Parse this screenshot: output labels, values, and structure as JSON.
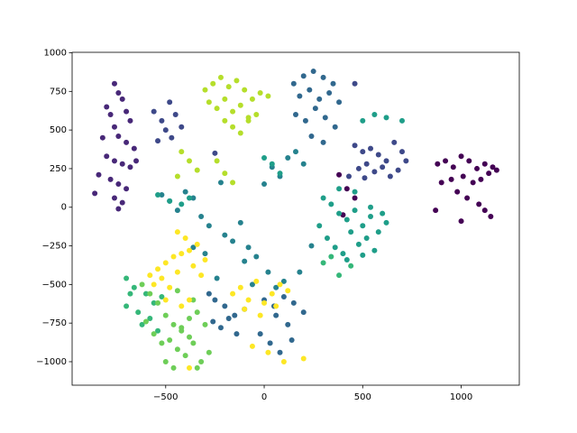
{
  "chart_data": {
    "type": "scatter",
    "xlim": [
      -975,
      1295
    ],
    "ylim": [
      -1152,
      1003
    ],
    "xticks": [
      {
        "value": -500,
        "label": "−500"
      },
      0,
      500,
      1000
    ],
    "yticks": [
      {
        "value": -1000,
        "label": "−1000"
      },
      {
        "value": -750,
        "label": "−750"
      },
      {
        "value": -500,
        "label": "−500"
      },
      {
        "value": -250,
        "label": "−250"
      },
      0,
      250,
      500,
      750,
      1000
    ],
    "series": [
      {
        "color": "#440154",
        "x": [
          880,
          920,
          960,
          1000,
          1040,
          1080,
          1120,
          1160,
          900,
          950,
          1010,
          1060,
          1100,
          1140,
          1180,
          980,
          1030,
          1090,
          1120,
          1150,
          870,
          1000,
          380,
          420,
          460,
          400
        ],
        "y": [
          280,
          300,
          260,
          330,
          300,
          250,
          280,
          260,
          160,
          180,
          200,
          160,
          180,
          220,
          240,
          100,
          60,
          20,
          -20,
          -60,
          -20,
          -90,
          210,
          120,
          60,
          -50
        ]
      },
      {
        "color": "#482878",
        "x": [
          -760,
          -740,
          -720,
          -800,
          -780,
          -700,
          -680,
          -760,
          -820,
          -740,
          -700,
          -660,
          -800,
          -760,
          -720,
          -680,
          -840,
          -780,
          -740,
          -700,
          -860,
          -760,
          -720,
          -740,
          -650
        ],
        "y": [
          800,
          740,
          700,
          650,
          600,
          620,
          560,
          520,
          450,
          460,
          420,
          380,
          330,
          300,
          280,
          260,
          210,
          180,
          150,
          120,
          90,
          60,
          30,
          -10,
          300
        ]
      },
      {
        "color": "#3e4989",
        "x": [
          -560,
          -520,
          -480,
          -450,
          -500,
          -470,
          -420,
          -540,
          460,
          500,
          540,
          580,
          620,
          660,
          700,
          480,
          520,
          560,
          600,
          640,
          680,
          720,
          430,
          510,
          460,
          -250
        ],
        "y": [
          620,
          560,
          680,
          600,
          500,
          450,
          520,
          430,
          400,
          360,
          380,
          340,
          300,
          420,
          360,
          250,
          280,
          230,
          260,
          200,
          240,
          300,
          200,
          190,
          800,
          350
        ]
      },
      {
        "color": "#31688e",
        "x": [
          150,
          200,
          250,
          300,
          350,
          180,
          230,
          280,
          330,
          380,
          160,
          210,
          260,
          310,
          360,
          240,
          300,
          -280,
          -250,
          -200,
          -150,
          -100,
          -260,
          -220,
          -180,
          -140,
          0,
          50,
          100,
          150,
          60,
          120,
          -20,
          30,
          80,
          140,
          200
        ],
        "y": [
          800,
          850,
          880,
          840,
          800,
          720,
          760,
          700,
          740,
          680,
          600,
          560,
          640,
          580,
          520,
          460,
          420,
          -560,
          -600,
          -640,
          -700,
          -660,
          -740,
          -780,
          -720,
          -820,
          -600,
          -640,
          -580,
          -620,
          -700,
          -760,
          -820,
          -880,
          -940,
          -860,
          -680
        ]
      },
      {
        "color": "#26828e",
        "x": [
          -520,
          -480,
          -440,
          -400,
          -360,
          -320,
          -280,
          -200,
          -160,
          -120,
          -80,
          -40,
          0,
          40,
          80,
          120,
          160,
          200,
          -220,
          -100,
          20,
          100,
          -300,
          -360,
          -240,
          180,
          -60,
          60,
          240
        ],
        "y": [
          80,
          40,
          -20,
          100,
          60,
          -60,
          -120,
          -180,
          -220,
          -100,
          -260,
          -320,
          150,
          260,
          200,
          320,
          360,
          280,
          160,
          -350,
          -420,
          -480,
          -300,
          -260,
          -460,
          -420,
          -500,
          -520,
          -250
        ]
      },
      {
        "color": "#1f9e89",
        "x": [
          300,
          340,
          380,
          420,
          460,
          500,
          540,
          580,
          620,
          320,
          360,
          400,
          440,
          480,
          520,
          560,
          600,
          280,
          380,
          460,
          540,
          420,
          500,
          -540,
          -480,
          -420,
          -380,
          500,
          560,
          620,
          700,
          0,
          40,
          80
        ],
        "y": [
          60,
          20,
          -40,
          -80,
          -20,
          -120,
          -60,
          -160,
          -100,
          -200,
          -260,
          -300,
          -160,
          -240,
          -200,
          -280,
          -40,
          -120,
          120,
          100,
          0,
          -340,
          -310,
          80,
          40,
          20,
          60,
          560,
          600,
          580,
          560,
          320,
          280,
          220
        ]
      },
      {
        "color": "#35b779",
        "x": [
          -700,
          -660,
          -600,
          -560,
          -520,
          -640,
          -580,
          -700,
          -620,
          -540,
          -680,
          300,
          380,
          440,
          340
        ],
        "y": [
          -460,
          -520,
          -560,
          -620,
          -580,
          -680,
          -720,
          -640,
          -760,
          -800,
          -560,
          -360,
          -440,
          -380,
          -320
        ]
      },
      {
        "color": "#6ece58",
        "x": [
          -620,
          -580,
          -540,
          -500,
          -460,
          -420,
          -380,
          -340,
          -300,
          -560,
          -520,
          -480,
          -440,
          -400,
          -360,
          -320,
          -280,
          -500,
          -460,
          -420,
          -380,
          -340,
          -600,
          -440,
          -360
        ],
        "y": [
          -500,
          -560,
          -620,
          -700,
          -760,
          -800,
          -720,
          -680,
          -760,
          -820,
          -880,
          -860,
          -920,
          -960,
          -880,
          -1000,
          -940,
          -1000,
          -1040,
          -780,
          -840,
          -1040,
          -740,
          -540,
          -600
        ]
      },
      {
        "color": "#b5de2b",
        "x": [
          -300,
          -260,
          -220,
          -180,
          -140,
          -100,
          -60,
          -20,
          20,
          -280,
          -240,
          -200,
          -160,
          -120,
          -80,
          -40,
          -200,
          -160,
          -120,
          -80,
          -420,
          -380,
          -340,
          -240,
          -200,
          -160,
          -440
        ],
        "y": [
          760,
          800,
          840,
          780,
          820,
          760,
          700,
          740,
          720,
          680,
          640,
          700,
          620,
          660,
          580,
          600,
          560,
          520,
          480,
          560,
          360,
          300,
          240,
          300,
          220,
          160,
          200
        ]
      },
      {
        "color": "#fde725",
        "x": [
          -580,
          -540,
          -500,
          -460,
          -420,
          -380,
          -340,
          -300,
          -560,
          -520,
          -480,
          -440,
          -400,
          -360,
          -320,
          -500,
          -420,
          -380,
          -440,
          -160,
          -120,
          -80,
          -40,
          0,
          40,
          80,
          120,
          -100,
          -20,
          60,
          -60,
          20,
          100,
          200,
          -380
        ],
        "y": [
          -440,
          -400,
          -360,
          -320,
          -300,
          -280,
          -240,
          -340,
          -500,
          -460,
          -520,
          -420,
          -200,
          -380,
          -440,
          -600,
          -640,
          -600,
          -160,
          -560,
          -520,
          -600,
          -480,
          -620,
          -560,
          -500,
          -540,
          -660,
          -700,
          -640,
          -900,
          -940,
          -1000,
          -980,
          -1040
        ]
      }
    ]
  }
}
